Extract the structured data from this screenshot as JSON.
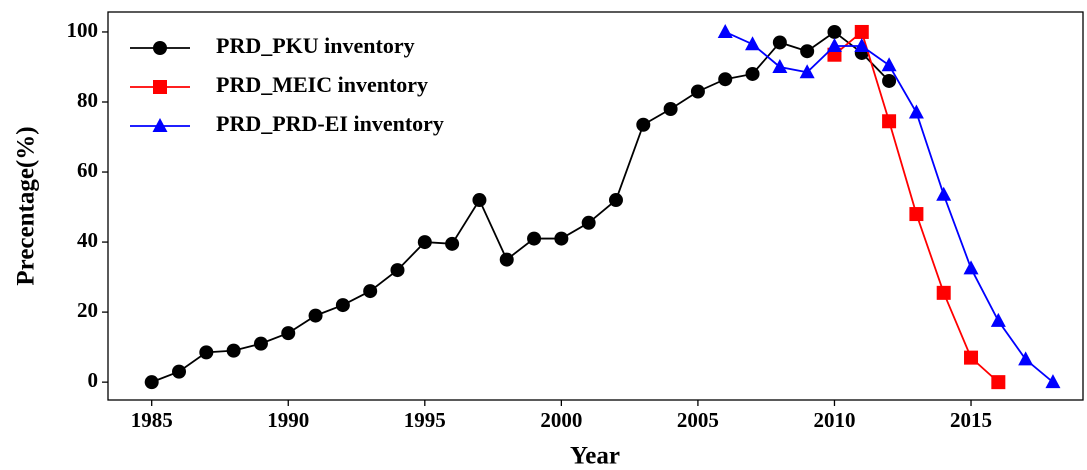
{
  "chart_data": {
    "type": "line",
    "x_label": "Year",
    "y_label": "Precentage(%)",
    "xlim": [
      1983.4,
      2019.1
    ],
    "ylim": [
      -5.1,
      105.7
    ],
    "xticks": [
      1985,
      1990,
      1995,
      2000,
      2005,
      2010,
      2015
    ],
    "yticks": [
      0,
      20,
      40,
      60,
      80,
      100
    ],
    "legend": "upper left",
    "series": [
      {
        "name": "PRD_PKU inventory",
        "color": "#000000",
        "marker": "circle",
        "x": [
          1985,
          1986,
          1987,
          1988,
          1989,
          1990,
          1991,
          1992,
          1993,
          1994,
          1995,
          1996,
          1997,
          1998,
          1999,
          2000,
          2001,
          2002,
          2003,
          2004,
          2005,
          2006,
          2007,
          2008,
          2009,
          2010,
          2011,
          2012
        ],
        "values": [
          0,
          3,
          8.5,
          9,
          11,
          14,
          19,
          22,
          26,
          32,
          40,
          39.5,
          52,
          35,
          41,
          41,
          45.5,
          52,
          73.5,
          78,
          83,
          86.5,
          88,
          97,
          94.5,
          100,
          94,
          86
        ]
      },
      {
        "name": "PRD_MEIC inventory",
        "color": "#ff0000",
        "marker": "square",
        "x": [
          2010,
          2011,
          2012,
          2013,
          2014,
          2015,
          2016
        ],
        "values": [
          93.5,
          100,
          74.5,
          48,
          25.5,
          7,
          0
        ]
      },
      {
        "name": "PRD_PRD-EI inventory",
        "color": "#0000ff",
        "marker": "triangle",
        "x": [
          2006,
          2007,
          2008,
          2009,
          2010,
          2011,
          2012,
          2013,
          2014,
          2015,
          2016,
          2017,
          2018
        ],
        "values": [
          100,
          96.5,
          90,
          88.5,
          96,
          96,
          90.5,
          77,
          53.5,
          32.5,
          17.5,
          6.5,
          0
        ]
      }
    ]
  }
}
